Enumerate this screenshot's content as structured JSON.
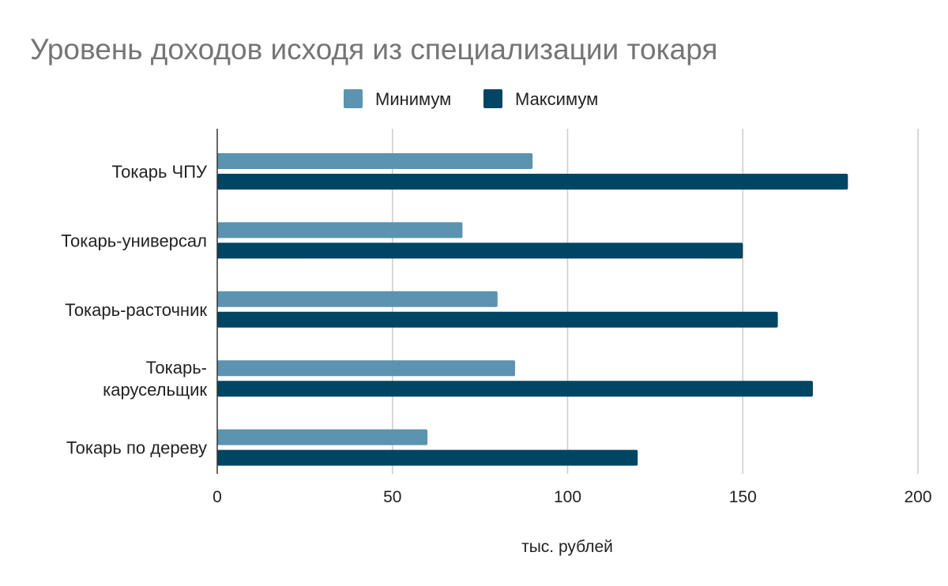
{
  "chart_data": {
    "type": "bar",
    "orientation": "horizontal",
    "title": "Уровень доходов исходя из специализации токаря",
    "xlabel": "тыс. рублей",
    "ylabel": "",
    "categories": [
      [
        "Токарь ЧПУ"
      ],
      [
        "Токарь-универсал"
      ],
      [
        "Токарь-расточник"
      ],
      [
        "Токарь-",
        "карусельщик"
      ],
      [
        "Токарь по дереву"
      ]
    ],
    "series": [
      {
        "name": "Минимум",
        "color": "#5b93b0",
        "values": [
          90,
          70,
          80,
          85,
          60
        ]
      },
      {
        "name": "Максимум",
        "color": "#004563",
        "values": [
          180,
          150,
          160,
          170,
          120
        ]
      }
    ],
    "xlim": [
      0,
      200
    ],
    "xticks": [
      0,
      50,
      100,
      150,
      200
    ],
    "grid": true,
    "legend_position": "top-center"
  }
}
